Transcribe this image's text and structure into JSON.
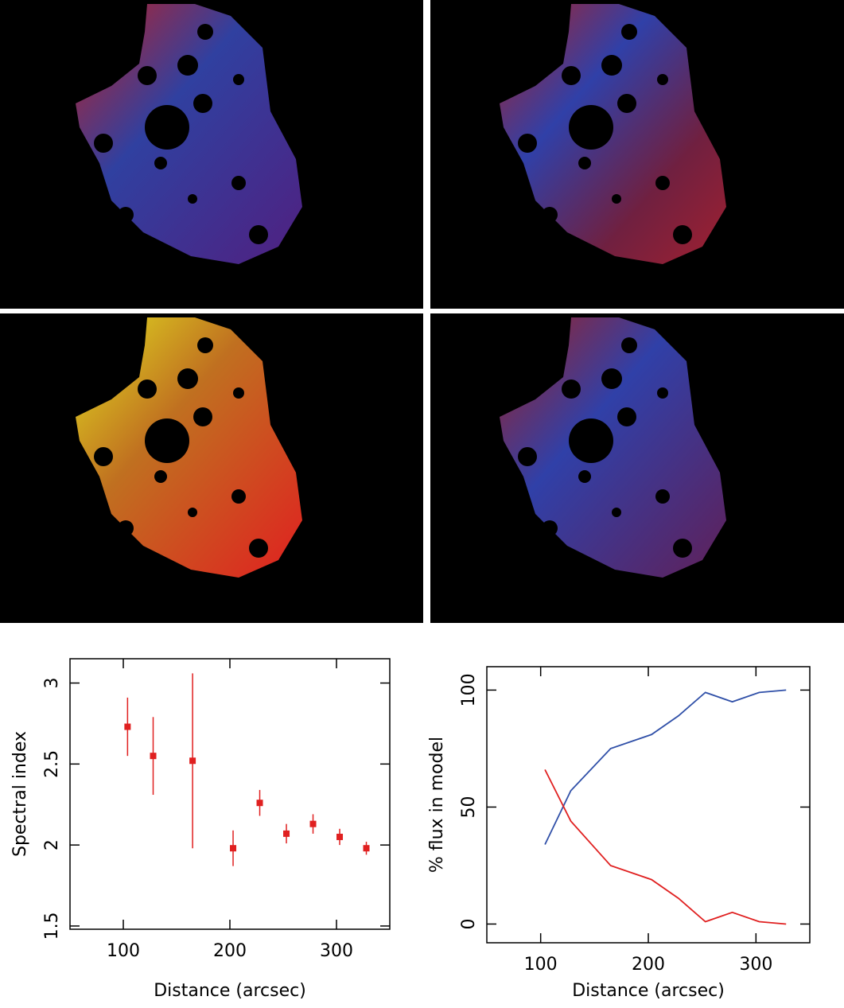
{
  "chart_data": [
    {
      "type": "scatter",
      "color": "#e02020",
      "ylabel": "Spectral index",
      "xlabel": "Distance (arcsec)",
      "x": [
        104,
        128,
        165,
        203,
        228,
        253,
        278,
        303,
        328
      ],
      "values": [
        2.73,
        2.55,
        2.52,
        1.98,
        2.26,
        2.07,
        2.13,
        2.05,
        1.98
      ],
      "errors": [
        0.18,
        0.24,
        0.54,
        0.11,
        0.08,
        0.06,
        0.06,
        0.05,
        0.04
      ],
      "xlim": [
        50,
        350
      ],
      "ylim": [
        1.48,
        3.15
      ],
      "xticks": [
        100,
        200,
        300
      ],
      "yticks": [
        1.5,
        2,
        2.5,
        3
      ]
    },
    {
      "type": "line",
      "ylabel": "% flux in model",
      "xlabel": "Distance (arcsec)",
      "x": [
        104,
        128,
        165,
        203,
        228,
        253,
        278,
        303,
        328
      ],
      "series": [
        {
          "color": "#3050a8",
          "values": [
            34,
            57,
            75,
            81,
            89,
            99,
            95,
            99,
            100
          ]
        },
        {
          "color": "#e02020",
          "values": [
            66,
            44,
            25,
            19,
            11,
            1,
            5,
            1,
            0
          ]
        }
      ],
      "xlim": [
        50,
        350
      ],
      "ylim": [
        -8,
        110
      ],
      "xticks": [
        100,
        200,
        300
      ],
      "yticks": [
        0,
        50,
        100
      ]
    }
  ]
}
